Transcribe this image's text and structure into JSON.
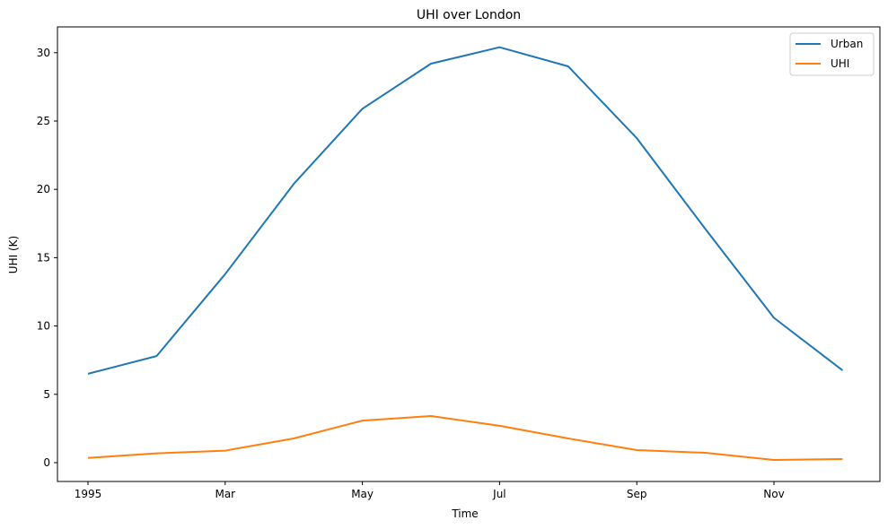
{
  "chart_data": {
    "type": "line",
    "title": "UHI over London",
    "xlabel": "Time",
    "ylabel": "UHI (K)",
    "x": [
      "1995-01",
      "1995-02",
      "1995-03",
      "1995-04",
      "1995-05",
      "1995-06",
      "1995-07",
      "1995-08",
      "1995-09",
      "1995-10",
      "1995-11",
      "1995-12"
    ],
    "series": [
      {
        "name": "Urban",
        "color": "#1f77b4",
        "values": [
          6.5,
          7.8,
          13.8,
          20.4,
          25.9,
          29.2,
          30.4,
          29.0,
          23.75,
          17.1,
          10.6,
          6.75
        ]
      },
      {
        "name": "UHI",
        "color": "#ff7f0e",
        "values": [
          0.35,
          0.68,
          0.88,
          1.77,
          3.08,
          3.41,
          2.7,
          1.77,
          0.92,
          0.72,
          0.2,
          0.26
        ]
      }
    ],
    "xticks": [
      {
        "label": "1995",
        "index": 0
      },
      {
        "label": "Mar",
        "index": 2
      },
      {
        "label": "May",
        "index": 4
      },
      {
        "label": "Jul",
        "index": 6
      },
      {
        "label": "Sep",
        "index": 8
      },
      {
        "label": "Nov",
        "index": 10
      }
    ],
    "yticks": [
      0,
      5,
      10,
      15,
      20,
      25,
      30
    ],
    "ylim": [
      -1.3,
      31.95
    ],
    "grid": false,
    "legend_position": "upper right"
  }
}
